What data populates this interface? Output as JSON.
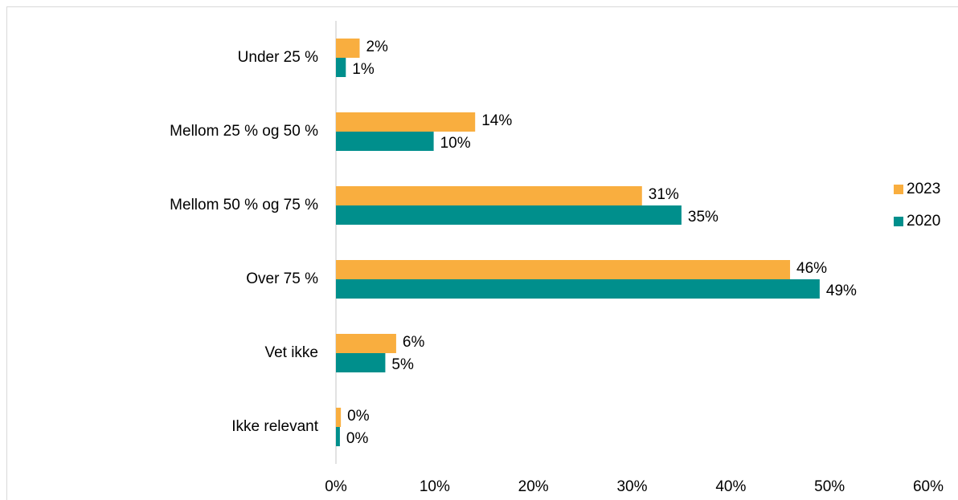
{
  "chart_data": {
    "type": "bar",
    "orientation": "horizontal",
    "categories": [
      "Under 25 %",
      "Mellom 25 % og 50 %",
      "Mellom 50 % og 75 %",
      "Over 75 %",
      "Vet ikke",
      "Ikke relevant"
    ],
    "series": [
      {
        "name": "2023",
        "color": "#f9ae3f",
        "label_color": "#595959",
        "values": [
          2.4,
          14.1,
          31,
          46,
          6.1,
          0.5
        ],
        "value_labels": [
          "2%",
          "14%",
          "31%",
          "46%",
          "6%",
          "0%"
        ]
      },
      {
        "name": "2020",
        "color": "#008f8c",
        "label_color": "#000000",
        "values": [
          1,
          9.9,
          35,
          49,
          5,
          0.4
        ],
        "value_labels": [
          "1%",
          "10%",
          "35%",
          "49%",
          "5%",
          "0%"
        ]
      }
    ],
    "xlim": [
      0,
      60
    ],
    "xticks": [
      {
        "value": 0,
        "label": "0%"
      },
      {
        "value": 10,
        "label": "10%"
      },
      {
        "value": 20,
        "label": "20%"
      },
      {
        "value": 30,
        "label": "30%"
      },
      {
        "value": 40,
        "label": "40%"
      },
      {
        "value": 50,
        "label": "50%"
      },
      {
        "value": 60,
        "label": "60%"
      }
    ],
    "grid": false,
    "legend": "right"
  }
}
